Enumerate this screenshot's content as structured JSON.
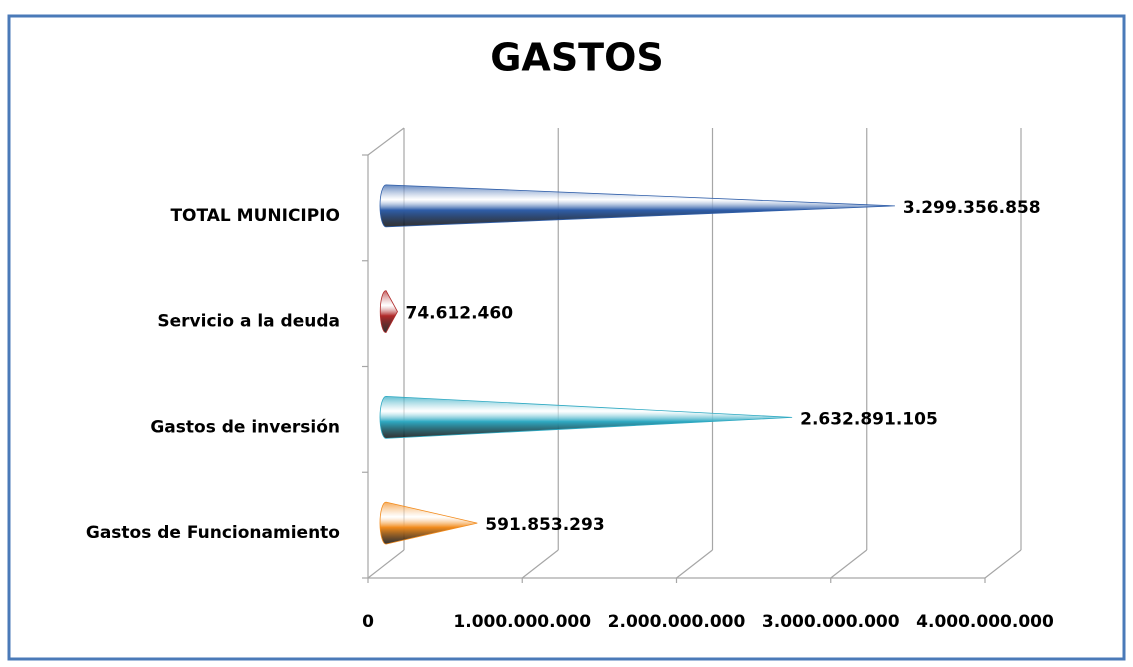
{
  "chart_data": {
    "type": "bar3d-cone",
    "title": "GASTOS",
    "categories": [
      "Gastos de Funcionamiento",
      "Gastos de inversión",
      "Servicio a la deuda",
      "TOTAL MUNICIPIO"
    ],
    "values": [
      591853293,
      2632891105,
      74612460,
      3299356858
    ],
    "value_labels": [
      "591.853.293",
      "2.632.891.105",
      "74.612.460",
      "3.299.356.858"
    ],
    "colors": [
      "#f28c1e",
      "#2ea9c2",
      "#b02a2a",
      "#2f5ea9"
    ],
    "xlim": [
      0,
      4000000000
    ],
    "xticks": [
      0,
      {
        "value": 1000000000,
        "label": "1.000.000.000"
      },
      {
        "value": 2000000000,
        "label": "2.000.000.000"
      },
      {
        "value": 3000000000,
        "label": "3.000.000.000"
      },
      {
        "value": 4000000000,
        "label": "4.000.000.000"
      }
    ],
    "grid": true
  }
}
